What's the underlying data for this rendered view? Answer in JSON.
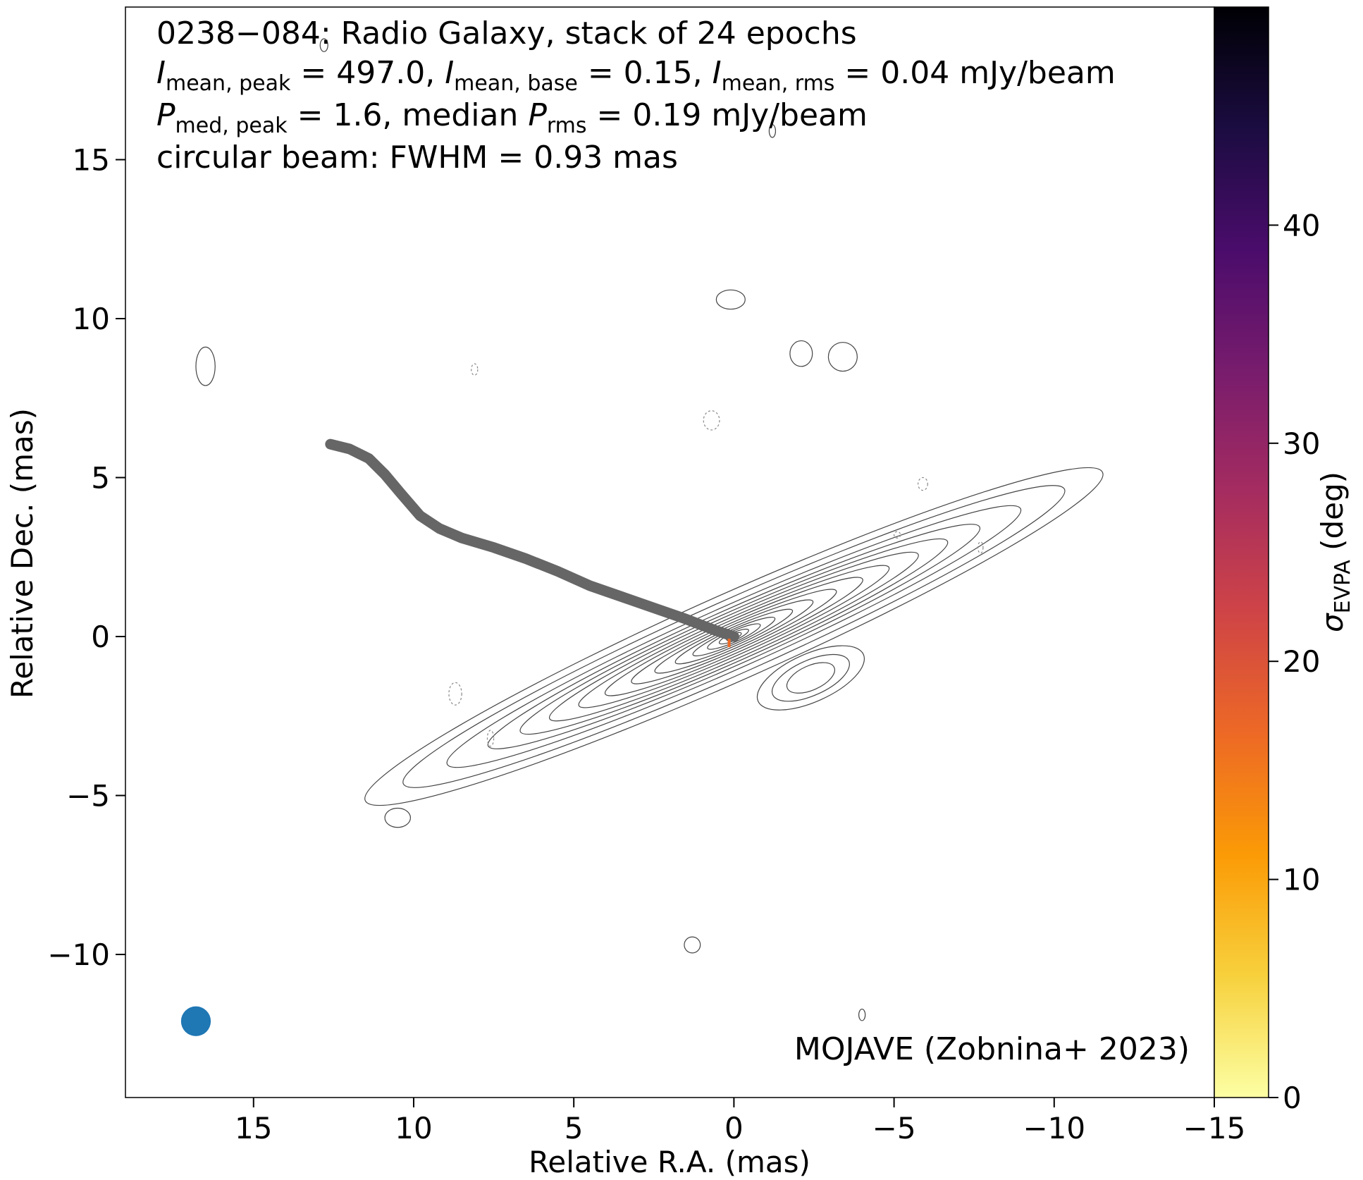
{
  "chart_data": {
    "type": "contour-map",
    "title_lines": {
      "line1": "0238−084: Radio Galaxy, stack of 24 epochs",
      "line2": {
        "i_sym": "I",
        "peak_sub": "mean, peak",
        "peak_val": " = 497.0, ",
        "base_sub": "mean, base",
        "base_val": " = 0.15, ",
        "rms_sub": "mean, rms",
        "rms_val": " = 0.04 mJy/beam"
      },
      "line3": {
        "p_sym": "P",
        "peak_sub": "med, peak",
        "peak_val": " = 1.6, median ",
        "rms_sub": "rms",
        "rms_val": " = 0.19 mJy/beam"
      },
      "line4": "circular beam: FWHM = 0.93 mas"
    },
    "credit": "MOJAVE (Zobnina+ 2023)",
    "xlabel": "Relative R.A. (mas)",
    "ylabel": "Relative Dec. (mas)",
    "xlim": [
      19,
      -15
    ],
    "ylim": [
      -14.5,
      19.8
    ],
    "xticks": [
      {
        "v": 15,
        "label": "15"
      },
      {
        "v": 10,
        "label": "10"
      },
      {
        "v": 5,
        "label": "5"
      },
      {
        "v": 0,
        "label": "0"
      },
      {
        "v": -5,
        "label": "−5"
      },
      {
        "v": -10,
        "label": "−10"
      },
      {
        "v": -15,
        "label": "−15"
      }
    ],
    "yticks": [
      {
        "v": 15,
        "label": "15"
      },
      {
        "v": 10,
        "label": "10"
      },
      {
        "v": 5,
        "label": "5"
      },
      {
        "v": 0,
        "label": "0"
      },
      {
        "v": -5,
        "label": "−5"
      },
      {
        "v": -10,
        "label": "−10"
      }
    ],
    "colorbar": {
      "label_sym": "σ",
      "label_sub": "EVPA",
      "label_unit": " (deg)",
      "range": [
        0,
        50
      ],
      "cmap": "inferno_r",
      "stops": [
        "#fcffa4",
        "#f7d13d",
        "#fb9b06",
        "#ed6925",
        "#cf4446",
        "#a52c60",
        "#781c6d",
        "#4a0c6b",
        "#1b0c41",
        "#000004"
      ],
      "ticks": [
        {
          "v": 0,
          "label": "0"
        },
        {
          "v": 10,
          "label": "10"
        },
        {
          "v": 20,
          "label": "20"
        },
        {
          "v": 30,
          "label": "30"
        },
        {
          "v": 40,
          "label": "40"
        }
      ]
    },
    "ridge_line": {
      "color": "#666666",
      "points": [
        [
          12.6,
          6.05
        ],
        [
          12.0,
          5.9
        ],
        [
          11.4,
          5.6
        ],
        [
          10.9,
          5.1
        ],
        [
          10.4,
          4.5
        ],
        [
          9.8,
          3.8
        ],
        [
          9.2,
          3.4
        ],
        [
          8.5,
          3.1
        ],
        [
          7.5,
          2.8
        ],
        [
          6.5,
          2.45
        ],
        [
          5.5,
          2.05
        ],
        [
          4.5,
          1.6
        ],
        [
          3.5,
          1.25
        ],
        [
          2.5,
          0.9
        ],
        [
          1.5,
          0.55
        ],
        [
          0.6,
          0.2
        ],
        [
          0.0,
          0.0
        ]
      ]
    },
    "core_evpa_marker": {
      "x": 0.15,
      "y": -0.2,
      "color": "#ed6925"
    },
    "contours": {
      "color": "#444444",
      "center": [
        0.0,
        0.0
      ],
      "pa_deg": 66,
      "levels": [
        {
          "a": 12.6,
          "b": 1.35
        },
        {
          "a": 11.3,
          "b": 1.15
        },
        {
          "a": 9.8,
          "b": 0.98
        },
        {
          "a": 8.4,
          "b": 0.86
        },
        {
          "a": 7.3,
          "b": 0.76
        },
        {
          "a": 6.3,
          "b": 0.67
        },
        {
          "a": 5.3,
          "b": 0.58
        },
        {
          "a": 4.4,
          "b": 0.5
        },
        {
          "a": 3.5,
          "b": 0.42
        },
        {
          "a": 2.7,
          "b": 0.35
        },
        {
          "a": 2.0,
          "b": 0.28
        },
        {
          "a": 1.4,
          "b": 0.22
        },
        {
          "a": 0.9,
          "b": 0.17
        },
        {
          "a": 0.5,
          "b": 0.12
        },
        {
          "a": 0.25,
          "b": 0.08
        }
      ],
      "jet_knot": {
        "center": [
          -2.4,
          -1.3
        ],
        "pa_deg": 66,
        "levels": [
          {
            "a": 1.8,
            "b": 0.75
          },
          {
            "a": 1.3,
            "b": 0.55
          },
          {
            "a": 0.8,
            "b": 0.38
          }
        ]
      },
      "outer_blobs": [
        {
          "x": 16.5,
          "y": 8.5,
          "a": 0.3,
          "b": 0.6,
          "dashed": false
        },
        {
          "x": 10.5,
          "y": -5.7,
          "a": 0.4,
          "b": 0.3,
          "dashed": false
        },
        {
          "x": 0.1,
          "y": 10.6,
          "a": 0.45,
          "b": 0.3,
          "dashed": false
        },
        {
          "x": -2.1,
          "y": 8.9,
          "a": 0.35,
          "b": 0.4,
          "dashed": false
        },
        {
          "x": -3.4,
          "y": 8.8,
          "a": 0.45,
          "b": 0.45,
          "dashed": false
        },
        {
          "x": 1.3,
          "y": -9.7,
          "a": 0.25,
          "b": 0.25,
          "dashed": false
        },
        {
          "x": -4.0,
          "y": -11.9,
          "a": 0.1,
          "b": 0.18,
          "dashed": false
        },
        {
          "x": -1.2,
          "y": 15.9,
          "a": 0.1,
          "b": 0.2,
          "dashed": false
        },
        {
          "x": 8.1,
          "y": 8.4,
          "a": 0.1,
          "b": 0.18,
          "dashed": true
        },
        {
          "x": 0.7,
          "y": 6.8,
          "a": 0.25,
          "b": 0.3,
          "dashed": true
        },
        {
          "x": 8.7,
          "y": -1.8,
          "a": 0.2,
          "b": 0.35,
          "dashed": true
        },
        {
          "x": 7.6,
          "y": -3.2,
          "a": 0.1,
          "b": 0.25,
          "dashed": true
        },
        {
          "x": -5.9,
          "y": 4.8,
          "a": 0.15,
          "b": 0.2,
          "dashed": true
        },
        {
          "x": -5.1,
          "y": 3.2,
          "a": 0.1,
          "b": 0.1,
          "dashed": true
        },
        {
          "x": -7.7,
          "y": 2.8,
          "a": 0.08,
          "b": 0.18,
          "dashed": true
        },
        {
          "x": 10.8,
          "y": 17.9,
          "a": 0.05,
          "b": 0.08,
          "dashed": true
        },
        {
          "x": 12.8,
          "y": 18.6,
          "a": 0.12,
          "b": 0.2,
          "dashed": false
        }
      ]
    },
    "beam": {
      "x": 16.8,
      "y": -12.1,
      "fwhm": 0.93,
      "color": "#1f77b4"
    }
  }
}
